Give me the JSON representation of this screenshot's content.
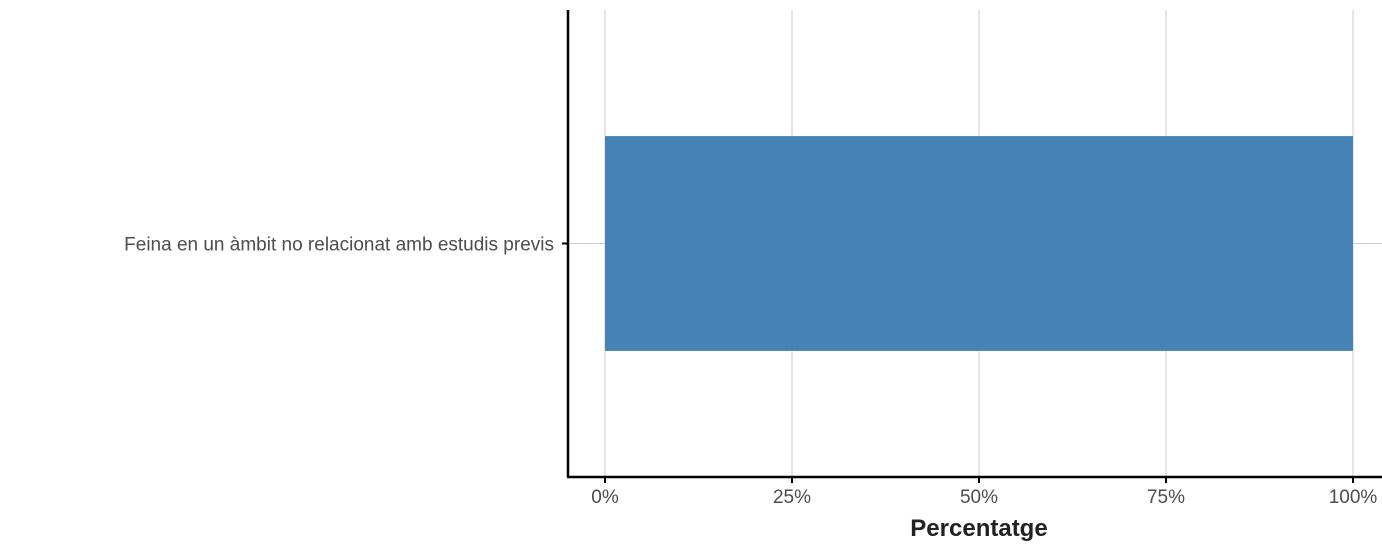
{
  "chart_data": {
    "type": "bar",
    "orientation": "horizontal",
    "categories": [
      "Feina en un àmbit no relacionat amb estudis previs"
    ],
    "values": [
      100
    ],
    "xlabel": "Percentatge",
    "ylabel": "",
    "xlim": [
      0,
      100
    ],
    "xticks": [
      {
        "value": 0,
        "label": "0%"
      },
      {
        "value": 25,
        "label": "25%"
      },
      {
        "value": 50,
        "label": "50%"
      },
      {
        "value": 75,
        "label": "75%"
      },
      {
        "value": 100,
        "label": "100%"
      }
    ],
    "bar_color": "#4682b4",
    "grid": true,
    "legend": "none"
  }
}
